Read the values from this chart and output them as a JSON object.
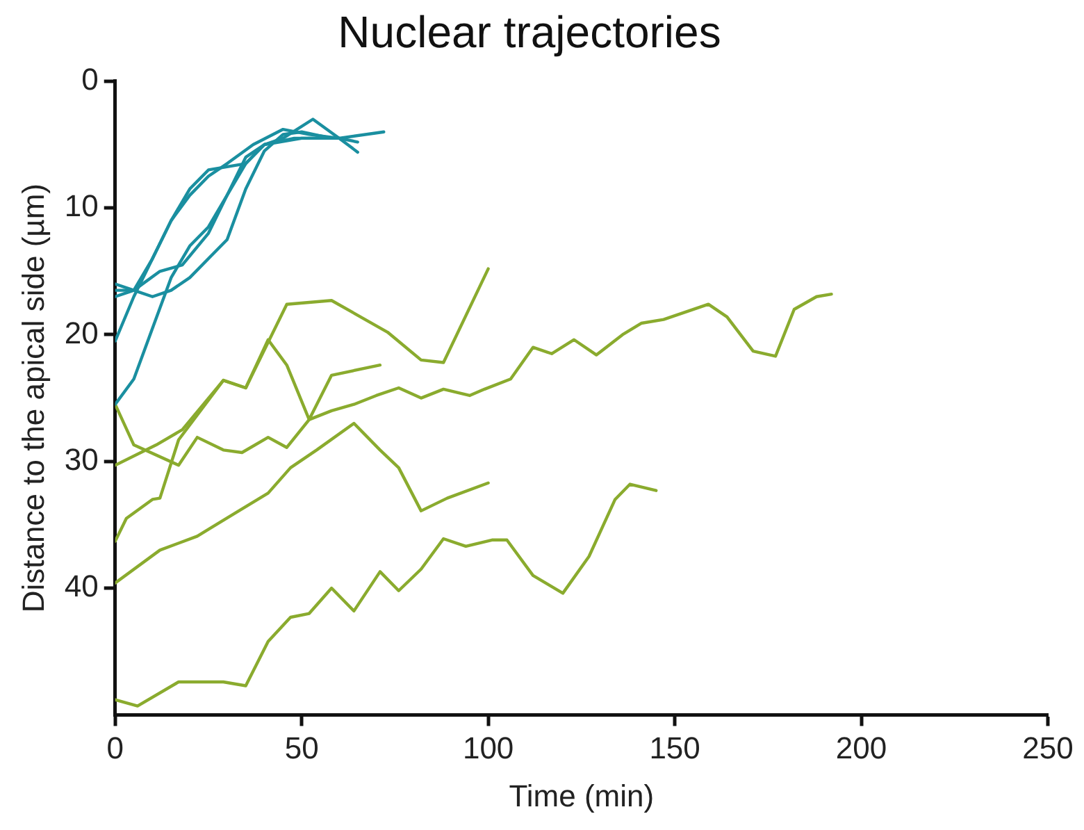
{
  "chart_data": {
    "type": "line",
    "title": "Nuclear trajectories",
    "xlabel": "Time (min)",
    "ylabel": "Distance to the apical side (µm)",
    "xlim": [
      0,
      250
    ],
    "xticks": [
      0,
      50,
      100,
      150,
      200,
      250
    ],
    "ylim": [
      50,
      0
    ],
    "yticks": [
      0,
      10,
      20,
      30,
      40
    ],
    "grid": false,
    "legend": false,
    "marker": "none",
    "line_style": "solid",
    "series": [
      {
        "color": "#1a8fa0",
        "x": [
          0,
          5,
          10,
          15,
          20,
          25,
          30,
          37,
          45,
          52,
          60,
          72
        ],
        "values": [
          16.5,
          16.5,
          14,
          11,
          9,
          7.5,
          6.5,
          5,
          3.8,
          4.2,
          4.5,
          4
        ]
      },
      {
        "color": "#1a8fa0",
        "x": [
          0,
          5,
          12,
          18,
          25,
          30,
          35,
          40,
          50,
          60,
          65
        ],
        "values": [
          17,
          16.5,
          15,
          14.5,
          12,
          9,
          6,
          5,
          4.5,
          4.5,
          4.8
        ]
      },
      {
        "color": "#1a8fa0",
        "x": [
          0,
          5,
          10,
          15,
          20,
          25,
          35,
          40,
          45,
          53,
          60,
          65
        ],
        "values": [
          20.5,
          17,
          14,
          11,
          8.5,
          7,
          6.5,
          5,
          4.5,
          3,
          4.5,
          5.6
        ]
      },
      {
        "color": "#1a8fa0",
        "x": [
          0,
          5,
          10,
          15,
          20,
          25,
          30,
          35,
          40,
          48,
          55
        ],
        "values": [
          25.5,
          23.5,
          19.5,
          15.5,
          13,
          11.5,
          9,
          6.5,
          5,
          4.5,
          4.5
        ]
      },
      {
        "color": "#1a8fa0",
        "x": [
          0,
          5,
          10,
          15,
          20,
          25,
          30,
          35,
          40,
          45,
          50,
          58
        ],
        "values": [
          16,
          16.5,
          17,
          16.5,
          15.5,
          14,
          12.5,
          8.5,
          5.5,
          4.2,
          4,
          4.5
        ]
      },
      {
        "color": "#8aab2e",
        "x": [
          0,
          11,
          18,
          29,
          35,
          46,
          58,
          73,
          82,
          88,
          100
        ],
        "values": [
          30.3,
          28.7,
          27.5,
          23.6,
          24.2,
          17.6,
          17.3,
          19.8,
          22,
          22.2,
          14.8
        ]
      },
      {
        "color": "#8aab2e",
        "x": [
          0,
          3,
          10,
          12,
          17,
          29,
          35,
          41,
          46,
          52,
          58,
          71
        ],
        "values": [
          36.3,
          34.5,
          33,
          32.9,
          28.3,
          23.6,
          24.2,
          20.4,
          22.4,
          26.7,
          23.2,
          22.4
        ]
      },
      {
        "color": "#8aab2e",
        "x": [
          0,
          5,
          17,
          22,
          29,
          34,
          41,
          46,
          52,
          58,
          64,
          70,
          76,
          82,
          88,
          95,
          99,
          106,
          112,
          117,
          123,
          129,
          136,
          141,
          147,
          159,
          164,
          171,
          177,
          182,
          188,
          192
        ],
        "values": [
          25.5,
          28.7,
          30.3,
          28.1,
          29.1,
          29.3,
          28.1,
          28.9,
          26.7,
          26,
          25.5,
          24.8,
          24.2,
          25,
          24.3,
          24.8,
          24.3,
          23.5,
          21,
          21.5,
          20.4,
          21.6,
          20,
          19.1,
          18.8,
          17.6,
          18.6,
          21.3,
          21.7,
          18,
          17,
          16.8
        ]
      },
      {
        "color": "#8aab2e",
        "x": [
          0,
          12,
          22,
          32,
          41,
          47,
          54,
          64,
          71,
          76,
          82,
          89,
          100
        ],
        "values": [
          39.6,
          37,
          35.9,
          34.1,
          32.5,
          30.5,
          29.1,
          27,
          29.1,
          30.5,
          33.9,
          32.9,
          31.7
        ]
      },
      {
        "color": "#8aab2e",
        "x": [
          0,
          6,
          17,
          29,
          35,
          41,
          47,
          52,
          58,
          64,
          71,
          76,
          82,
          88,
          94,
          101,
          105,
          112,
          120,
          127,
          134,
          138,
          145
        ],
        "values": [
          48.8,
          49.3,
          47.4,
          47.4,
          47.7,
          44.2,
          42.3,
          42,
          40,
          41.8,
          38.7,
          40.2,
          38.5,
          36.1,
          36.7,
          36.2,
          36.2,
          39,
          40.4,
          37.5,
          33,
          31.8,
          32.3
        ]
      }
    ]
  }
}
